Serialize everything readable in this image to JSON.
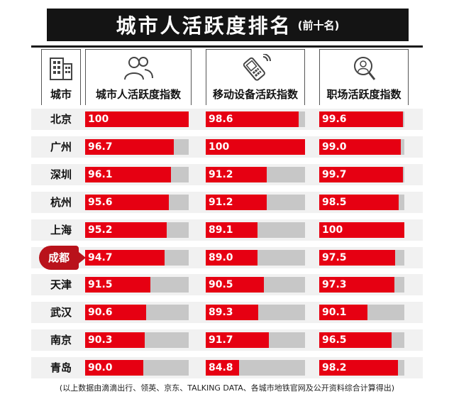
{
  "title": {
    "main": "城市人活跃度排名",
    "sub": "(前十名)"
  },
  "headers": {
    "city": "城市",
    "city_activity": "城市人活跃度指数",
    "mobile_activity": "移动设备活跃指数",
    "work_activity": "职场活跃度指数"
  },
  "icons": {
    "city": "building-icon",
    "people": "people-icon",
    "phone": "mobile-phone-icon",
    "search": "magnifier-person-icon"
  },
  "colors": {
    "bar": "#e60012",
    "track": "#c7c7c7",
    "highlight": "#b9121b",
    "title_bg": "#141414"
  },
  "highlight_city": "成都",
  "footnote": "(以上数据由滴滴出行、领英、京东、TALKING DATA、各城市地铁官网及公开资料综合计算得出)",
  "chart_data": {
    "type": "bar",
    "orientation": "horizontal",
    "categories": [
      "北京",
      "广州",
      "深圳",
      "杭州",
      "上海",
      "成都",
      "天津",
      "武汉",
      "南京",
      "青岛"
    ],
    "xlim": [
      0,
      100
    ],
    "series": [
      {
        "name": "城市人活跃度指数",
        "values": [
          "100",
          "96.7",
          "96.1",
          "95.6",
          "95.2",
          "94.7",
          "91.5",
          "90.6",
          "90.3",
          "90.0"
        ]
      },
      {
        "name": "移动设备活跃指数",
        "values": [
          "98.6",
          "100",
          "91.2",
          "91.2",
          "89.1",
          "89.0",
          "90.5",
          "89.3",
          "91.7",
          "84.8"
        ]
      },
      {
        "name": "职场活跃度指数",
        "values": [
          "99.6",
          "99.0",
          "99.7",
          "98.5",
          "100",
          "97.5",
          "97.3",
          "90.1",
          "96.5",
          "98.2"
        ]
      }
    ]
  }
}
